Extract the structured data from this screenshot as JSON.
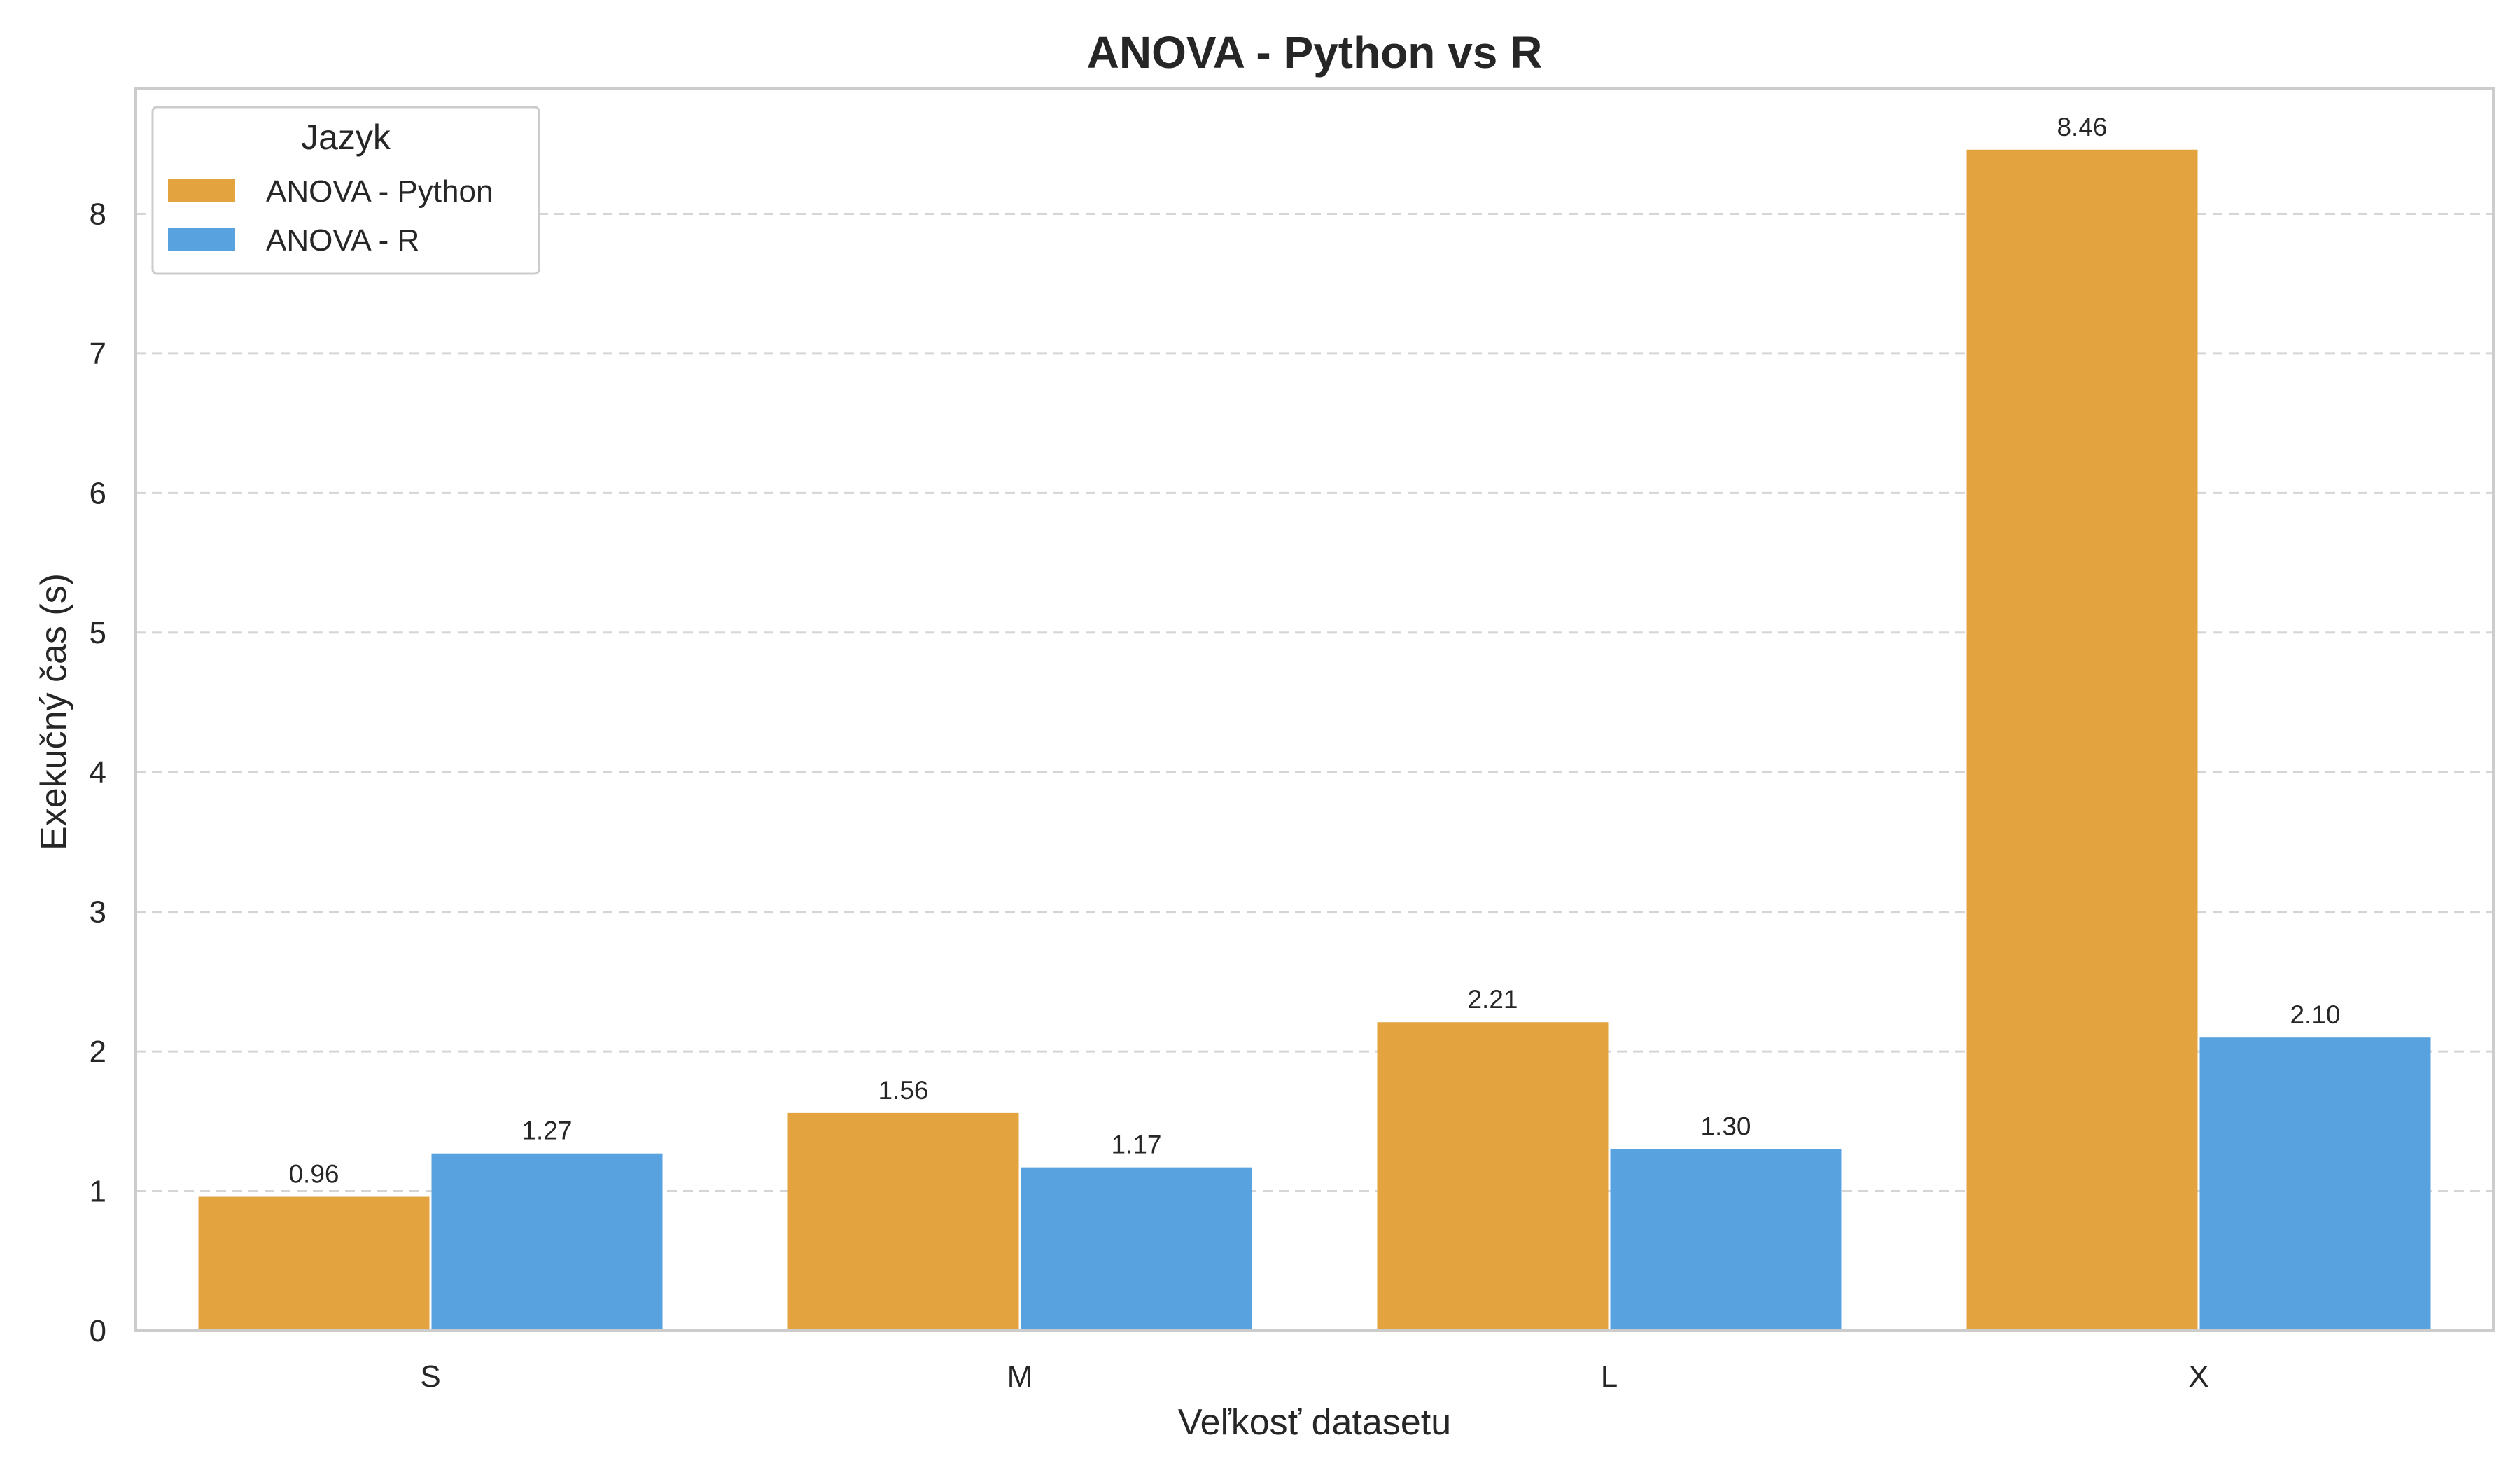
{
  "chart_data": {
    "type": "bar",
    "title": "ANOVA - Python vs R",
    "xlabel": "Veľkosť datasetu",
    "ylabel": "Exekučný čas (s)",
    "categories": [
      "S",
      "M",
      "L",
      "X"
    ],
    "series": [
      {
        "name": "ANOVA - Python",
        "values": [
          0.96,
          1.56,
          2.21,
          8.46
        ],
        "color": "#E3A33F"
      },
      {
        "name": "ANOVA - R",
        "values": [
          1.27,
          1.17,
          1.3,
          2.1
        ],
        "color": "#58A2DF"
      }
    ],
    "ylim": [
      0,
      8.9
    ],
    "yticks": [
      0,
      1,
      2,
      3,
      4,
      5,
      6,
      7,
      8
    ],
    "value_labels": [
      [
        "0.96",
        "1.56",
        "2.21",
        "8.46"
      ],
      [
        "1.27",
        "1.17",
        "1.30",
        "2.10"
      ]
    ],
    "grid": "y-dashed",
    "legend": {
      "title": "Jazyk",
      "position": "top-left"
    }
  }
}
